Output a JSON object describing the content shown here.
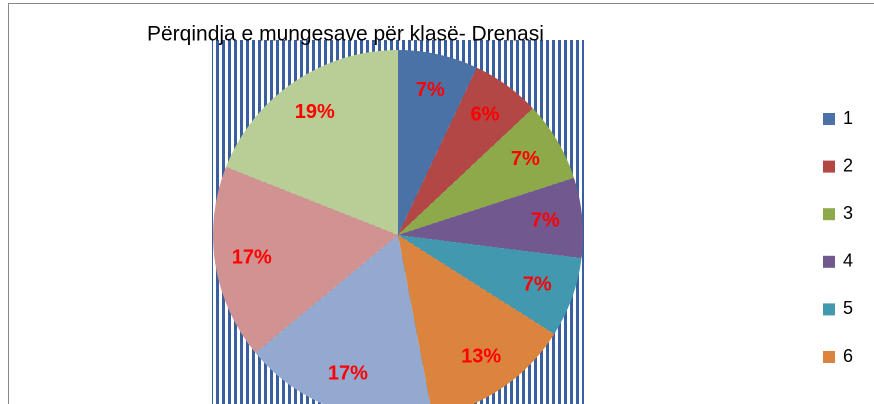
{
  "chart_data": {
    "type": "pie",
    "title": "Përqindja e mungesave për klasë- Drenasi",
    "categories": [
      "1",
      "2",
      "3",
      "4",
      "5",
      "6",
      null,
      null,
      null
    ],
    "values": [
      7,
      6,
      7,
      7,
      7,
      13,
      17,
      17,
      19
    ],
    "value_labels": [
      "7%",
      "6%",
      "7%",
      "7%",
      "7%",
      "13%",
      "17%",
      "17%",
      "19%"
    ],
    "colors": [
      "#4a72a6",
      "#b24745",
      "#8ea94a",
      "#71588f",
      "#4298ae",
      "#db843d",
      "#93a9cf",
      "#d19392",
      "#b9cd96"
    ],
    "label_color": "#ff0000",
    "legend": "right"
  }
}
